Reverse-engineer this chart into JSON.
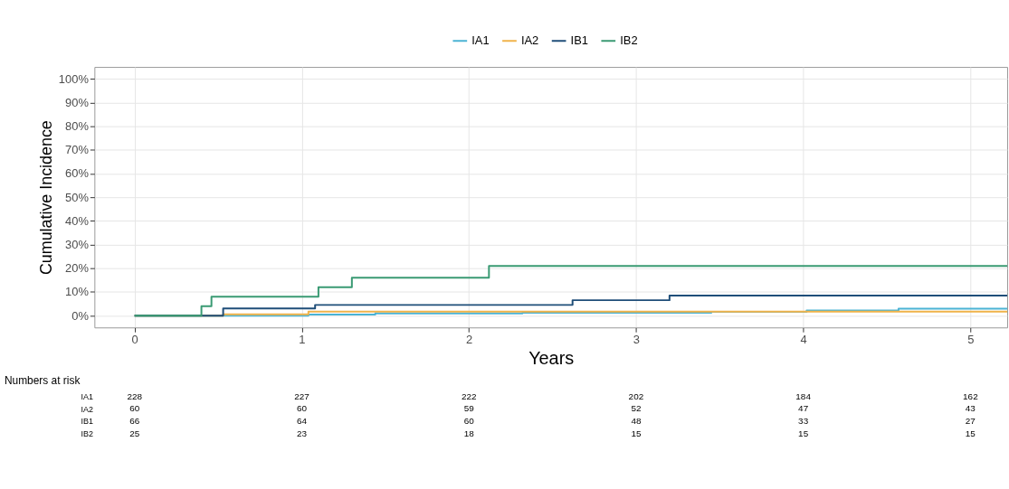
{
  "chart_data": [
    {
      "type": "step",
      "xlabel": "Years",
      "ylabel": "Cumulative Incidence",
      "xlim": [
        -0.24,
        5.22
      ],
      "xticks": [
        0,
        1,
        2,
        3,
        4,
        5
      ],
      "ylim": [
        -5,
        105
      ],
      "yticks": [
        {
          "value": 0,
          "label": "0%"
        },
        {
          "value": 10,
          "label": "10%"
        },
        {
          "value": 20,
          "label": "20%"
        },
        {
          "value": 30,
          "label": "30%"
        },
        {
          "value": 40,
          "label": "40%"
        },
        {
          "value": 50,
          "label": "50%"
        },
        {
          "value": 60,
          "label": "60%"
        },
        {
          "value": 70,
          "label": "70%"
        },
        {
          "value": 80,
          "label": "80%"
        },
        {
          "value": 90,
          "label": "90%"
        },
        {
          "value": 100,
          "label": "100%"
        }
      ],
      "grid": true,
      "legend": "top",
      "marker": "none",
      "line_style": "solid",
      "series": [
        {
          "name": "IA1",
          "color": "#4bb3d4",
          "x": [
            0,
            1.04,
            1.44,
            2.32,
            3.45,
            4.02,
            4.57,
            5.22
          ],
          "values": [
            0,
            0.4,
            0.9,
            1.2,
            1.6,
            2.2,
            2.9,
            2.9
          ]
        },
        {
          "name": "IA2",
          "color": "#f0b34a",
          "x": [
            0,
            0.53,
            1.04,
            5.22
          ],
          "values": [
            0,
            0.5,
            1.7,
            1.7
          ]
        },
        {
          "name": "IB1",
          "color": "#1f4e79",
          "x": [
            0,
            0.53,
            1.08,
            2.62,
            3.2,
            5.22
          ],
          "values": [
            0,
            3,
            4.5,
            6.5,
            8.5,
            8.5
          ]
        },
        {
          "name": "IB2",
          "color": "#3a9a73",
          "x": [
            0,
            0.4,
            0.46,
            1.1,
            1.3,
            2.12,
            5.22
          ],
          "values": [
            0,
            4,
            8,
            12,
            16,
            21,
            21
          ]
        }
      ]
    },
    {
      "type": "heatmap",
      "title": "Numbers at risk",
      "categories": [
        "0",
        "1",
        "2",
        "3",
        "4",
        "5"
      ],
      "y_categories": [
        "IA1",
        "IA2",
        "IB1",
        "IB2"
      ],
      "data_labels": true,
      "tick_labels": "y",
      "cells": [
        [
          228,
          227,
          222,
          202,
          184,
          162
        ],
        [
          60,
          60,
          59,
          52,
          47,
          43
        ],
        [
          66,
          64,
          60,
          48,
          33,
          27
        ],
        [
          25,
          23,
          18,
          15,
          15,
          15
        ]
      ]
    }
  ]
}
